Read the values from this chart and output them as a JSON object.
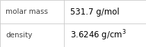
{
  "rows": [
    {
      "label": "molar mass",
      "value": "531.7 g/mol",
      "superscript": null
    },
    {
      "label": "density",
      "value": "3.6246 g/cm",
      "superscript": "3"
    }
  ],
  "bg_color": "#ffffff",
  "border_color": "#c8c8c8",
  "label_color": "#404040",
  "value_color": "#000000",
  "col_split": 0.44,
  "label_fontsize": 7.5,
  "value_fontsize": 8.5
}
